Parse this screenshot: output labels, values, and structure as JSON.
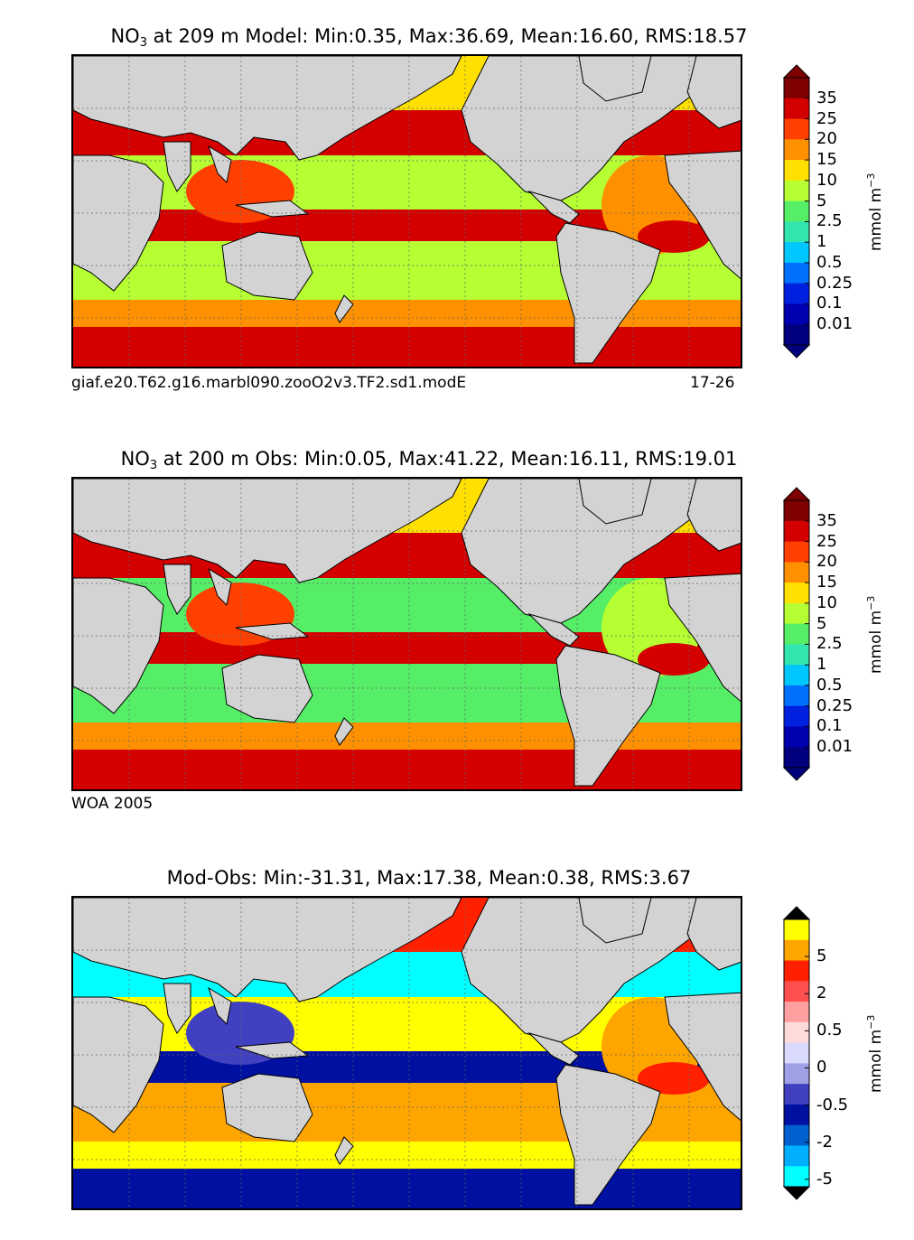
{
  "panels": [
    {
      "id": "model",
      "title_var": "NO",
      "title_sub": "3",
      "title_rest": " at 209 m Model: Min:0.35, Max:36.69, Mean:16.60, RMS:18.57",
      "caption_left": "giaf.e20.T62.g16.marbl090.zooO2v3.TF2.sd1.modE",
      "caption_right": "17-26",
      "colorbar": {
        "unit_text": "mmol m",
        "unit_exp": "−3",
        "ticks": [
          "35",
          "25",
          "20",
          "15",
          "10",
          "5",
          "2.5",
          "1",
          "0.5",
          "0.25",
          "0.1",
          "0.01"
        ],
        "colors": [
          "#7f0000",
          "#d40000",
          "#ff4000",
          "#ff9000",
          "#ffe000",
          "#b5ff33",
          "#55ee66",
          "#33e6b0",
          "#00c8ff",
          "#0070ff",
          "#0020e0",
          "#0000b0",
          "#00007f"
        ],
        "over": "#7f0000",
        "under": "#00007f"
      },
      "bands": {
        "north": "#ffe000",
        "npac_sub": "#d40000",
        "npac": "#b5ff33",
        "eq": "#d40000",
        "spac": "#b5ff33",
        "south": "#ff9000",
        "southern": "#d40000",
        "indian": "#ff4000",
        "atl": "#ff9000",
        "atl_eq": "#d40000"
      }
    },
    {
      "id": "obs",
      "title_var": "NO",
      "title_sub": "3",
      "title_rest": " at 200 m Obs: Min:0.05, Max:41.22, Mean:16.11, RMS:19.01",
      "caption_left": "WOA 2005",
      "colorbar": {
        "unit_text": "mmol m",
        "unit_exp": "−3",
        "ticks": [
          "35",
          "25",
          "20",
          "15",
          "10",
          "5",
          "2.5",
          "1",
          "0.5",
          "0.25",
          "0.1",
          "0.01"
        ],
        "colors": [
          "#7f0000",
          "#d40000",
          "#ff4000",
          "#ff9000",
          "#ffe000",
          "#b5ff33",
          "#55ee66",
          "#33e6b0",
          "#00c8ff",
          "#0070ff",
          "#0020e0",
          "#0000b0",
          "#00007f"
        ],
        "over": "#7f0000",
        "under": "#00007f"
      },
      "bands": {
        "north": "#ffe000",
        "npac_sub": "#d40000",
        "npac": "#55ee66",
        "eq": "#d40000",
        "spac": "#55ee66",
        "south": "#ff9000",
        "southern": "#d40000",
        "indian": "#ff4000",
        "atl": "#b5ff33",
        "atl_eq": "#d40000"
      }
    },
    {
      "id": "diff",
      "title_rest": "Mod-Obs: Min:-31.31, Max:17.38, Mean:0.38, RMS:3.67",
      "colorbar": {
        "unit_text": "mmol m",
        "unit_exp": "−3",
        "ticks": [
          "5",
          "2",
          "0.5",
          "0",
          "-0.5",
          "-2",
          "-5"
        ],
        "colors": [
          "#ffff00",
          "#ffa500",
          "#ff2000",
          "#ff5050",
          "#ffa0a0",
          "#ffdada",
          "#dadaff",
          "#a0a0e6",
          "#4040c0",
          "#0010a0",
          "#0060d0",
          "#00b0ff",
          "#00ffff"
        ],
        "over": "#000000",
        "under": "#000000"
      },
      "bands": {
        "north": "#ff2000",
        "npac_sub": "#00ffff",
        "npac": "#ffff00",
        "eq": "#0010a0",
        "spac": "#ffa500",
        "south": "#ffff00",
        "southern": "#0010a0",
        "indian": "#4040c0",
        "atl": "#ffa500",
        "atl_eq": "#ff2000"
      }
    }
  ]
}
